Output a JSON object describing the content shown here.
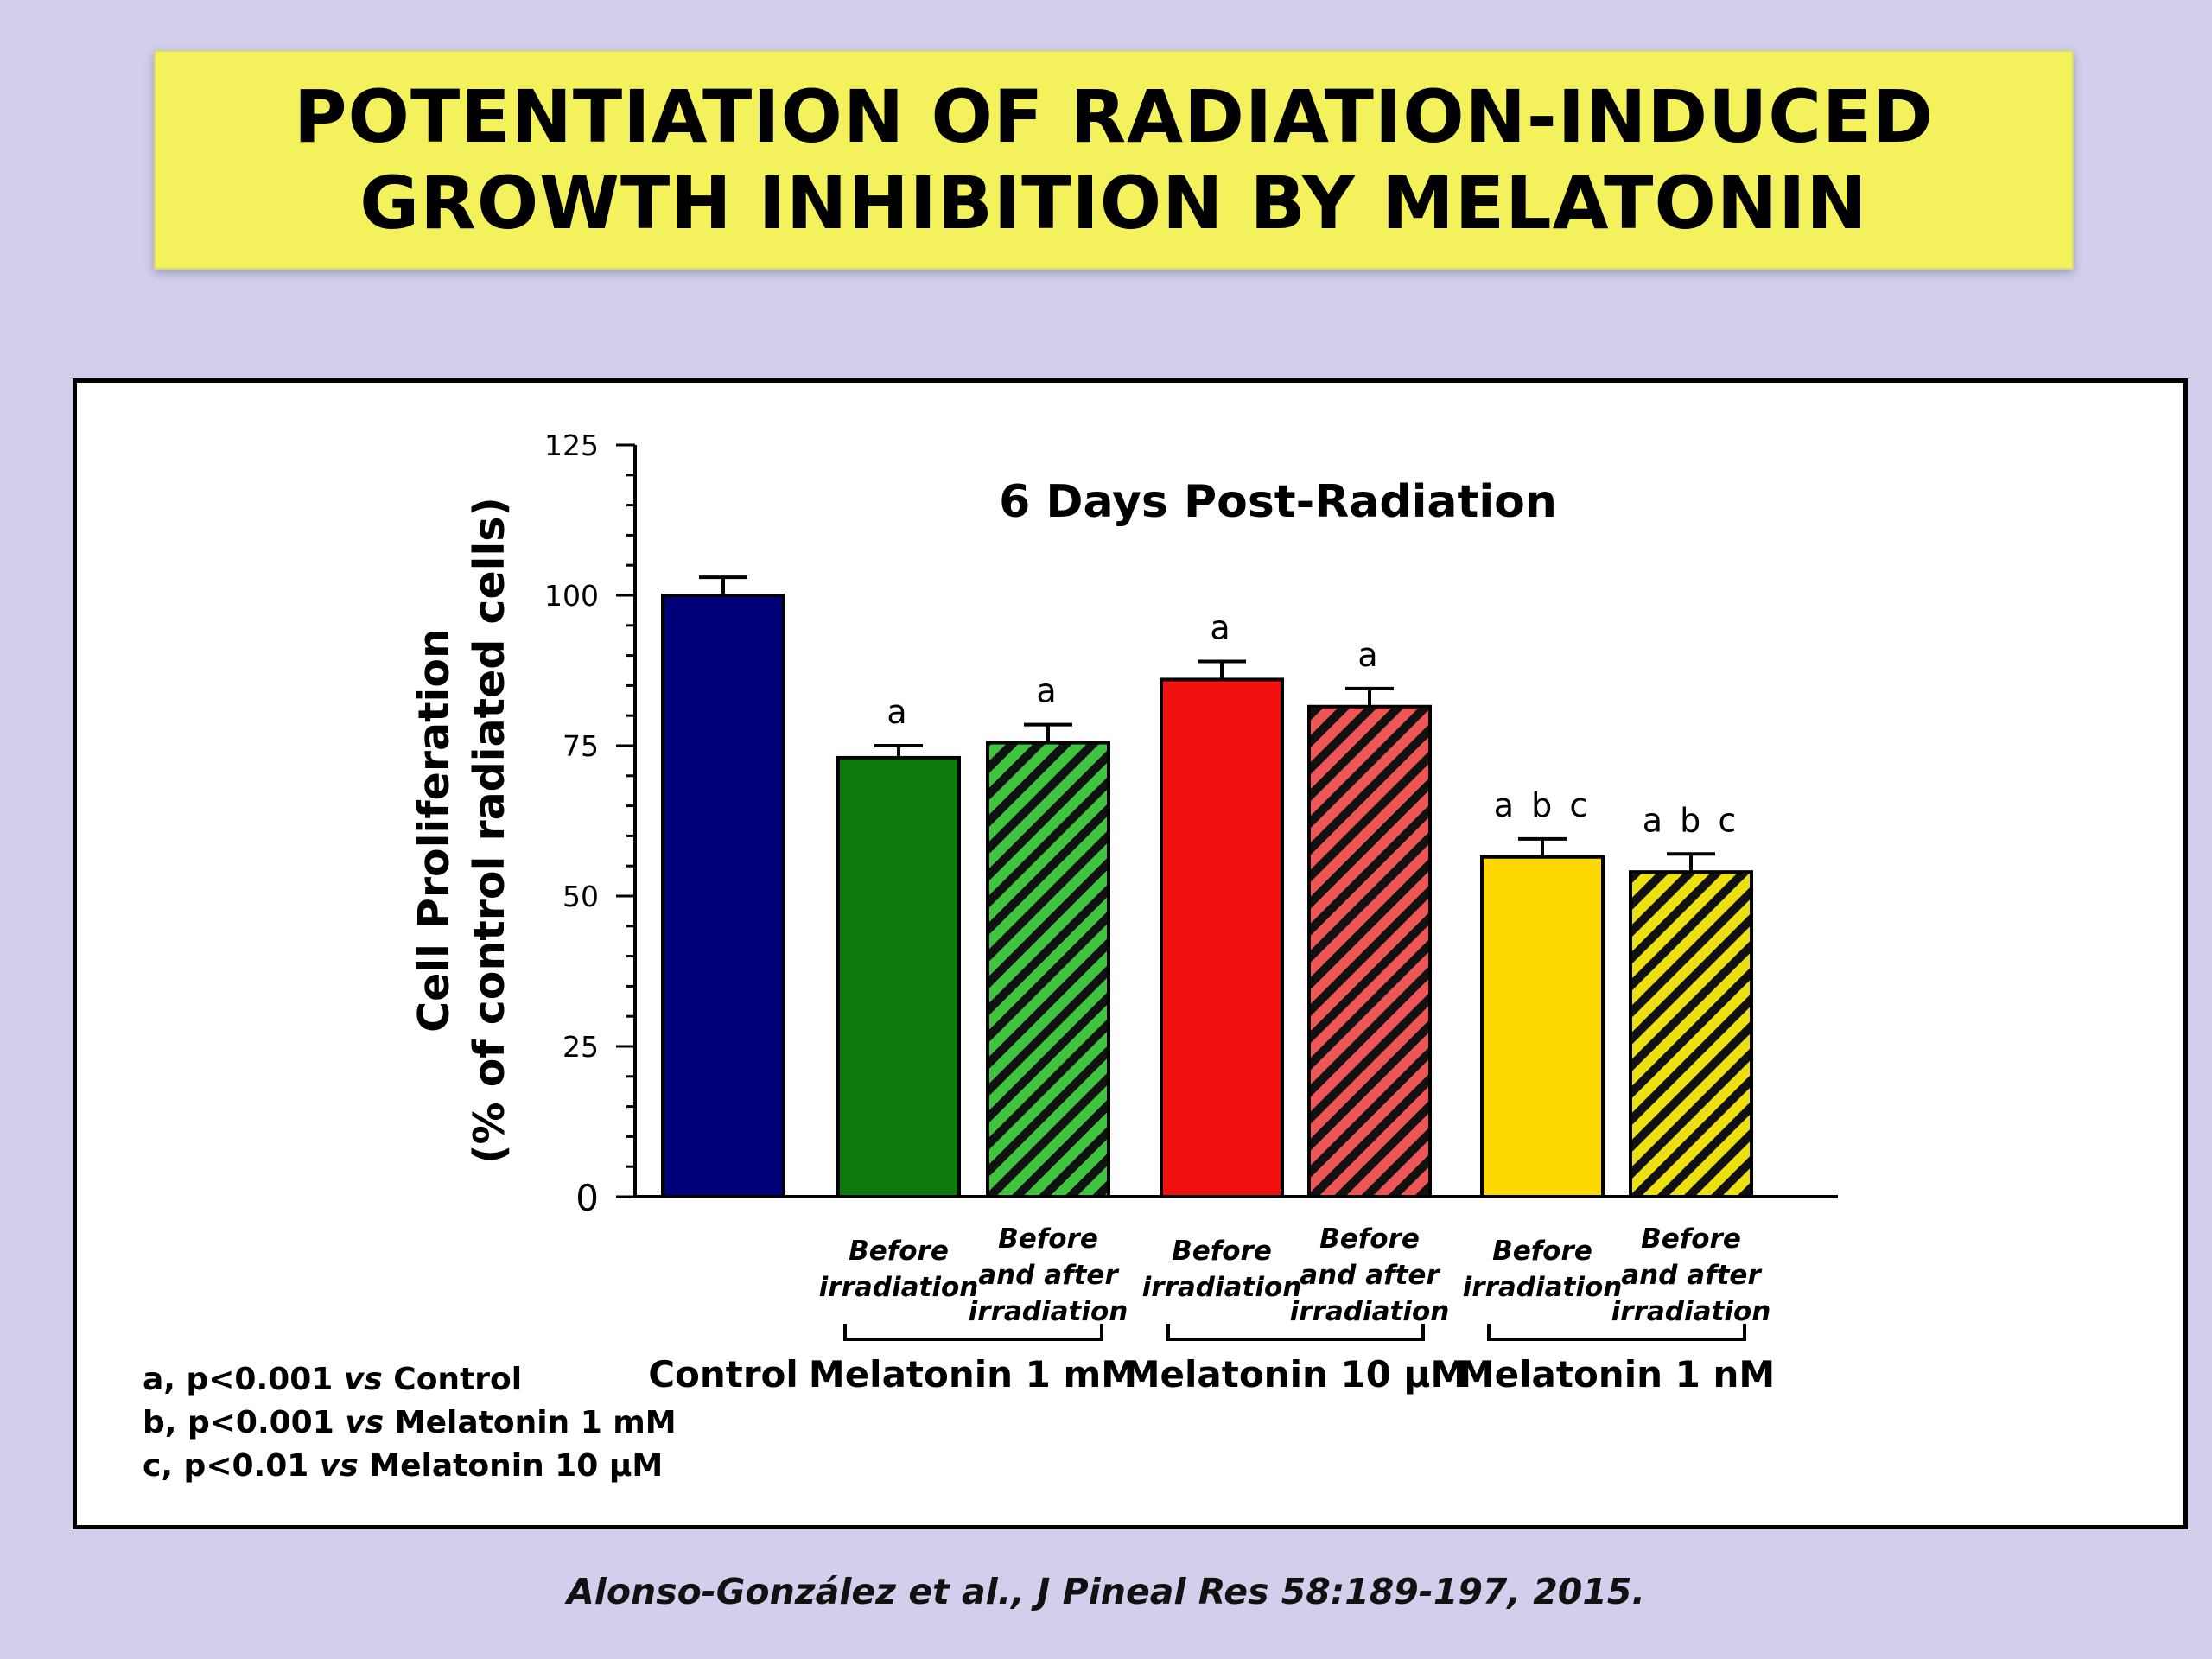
{
  "title": {
    "line1": "POTENTIATION OF RADIATION-INDUCED",
    "line2": "GROWTH INHIBITION BY MELATONIN"
  },
  "citation": "Alonso-González et al., J Pineal Res 58:189-197, 2015.",
  "footnotes": [
    {
      "prefix": "a, p<0.001 ",
      "vs": "vs",
      "suffix": " Control"
    },
    {
      "prefix": "b, p<0.001 ",
      "vs": "vs",
      "suffix": " Melatonin 1 mM"
    },
    {
      "prefix": "c, p<0.01 ",
      "vs": "vs",
      "suffix": " Melatonin 10 µM"
    }
  ],
  "colors": {
    "background": "#d1cfec",
    "title_box": "#f4f25c",
    "control": "#000078",
    "melatonin_1mM": "#0c7a0c",
    "melatonin_1mM_hatch": "#3fc43f",
    "melatonin_10uM": "#f01010",
    "melatonin_10uM_hatch": "#ee5555",
    "melatonin_1nM": "#ffd800",
    "melatonin_1nM_hatch": "#ece010"
  },
  "chart_data": {
    "type": "bar",
    "title": "6 Days Post-Radiation",
    "ylabel_line1": "Cell Proliferation",
    "ylabel_line2": "(% of control radiated cells)",
    "ylim": [
      0,
      125
    ],
    "yticks": [
      0,
      25,
      50,
      75,
      100,
      125
    ],
    "grid": false,
    "bars": [
      {
        "group": "Control",
        "sublabel": [],
        "value": 100,
        "error": 3,
        "sig": "",
        "color": "#000078",
        "hatched": false
      },
      {
        "group": "Melatonin 1 mM",
        "sublabel": [
          "Before",
          "irradiation"
        ],
        "value": 73,
        "error": 2,
        "sig": "a",
        "color": "#0c7a0c",
        "hatched": false
      },
      {
        "group": "Melatonin 1 mM",
        "sublabel": [
          "Before",
          "and after",
          "irradiation"
        ],
        "value": 75.5,
        "error": 3,
        "sig": "a",
        "color": "#3fc43f",
        "hatched": true
      },
      {
        "group": "Melatonin 10 µM",
        "sublabel": [
          "Before",
          "irradiation"
        ],
        "value": 86,
        "error": 3,
        "sig": "a",
        "color": "#f01010",
        "hatched": false
      },
      {
        "group": "Melatonin 10 µM",
        "sublabel": [
          "Before",
          "and after",
          "irradiation"
        ],
        "value": 81.5,
        "error": 3,
        "sig": "a",
        "color": "#ee5555",
        "hatched": true
      },
      {
        "group": "Melatonin 1 nM",
        "sublabel": [
          "Before",
          "irradiation"
        ],
        "value": 56.5,
        "error": 3,
        "sig": "a b c",
        "color": "#ffd800",
        "hatched": false
      },
      {
        "group": "Melatonin 1 nM",
        "sublabel": [
          "Before",
          "and after",
          "irradiation"
        ],
        "value": 54,
        "error": 3,
        "sig": "a b c",
        "color": "#ece010",
        "hatched": true
      }
    ],
    "groups": [
      "Control",
      "Melatonin 1 mM",
      "Melatonin 10 µM",
      "Melatonin 1 nM"
    ]
  }
}
